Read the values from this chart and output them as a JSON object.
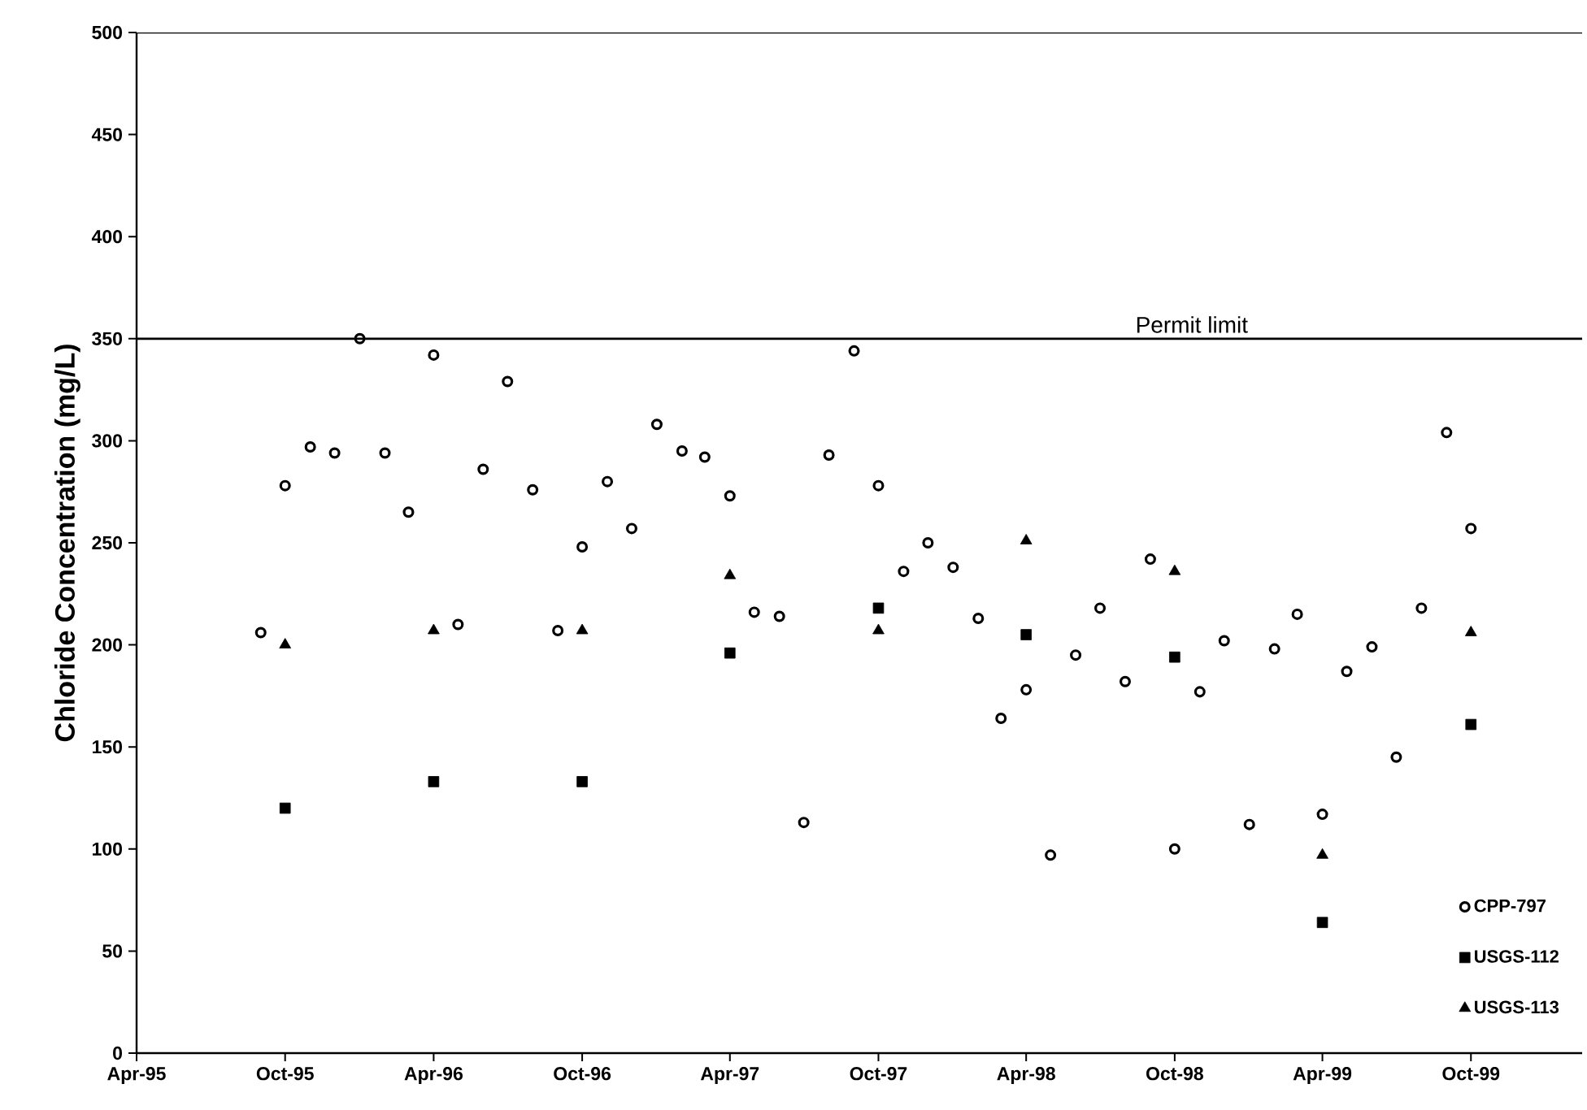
{
  "chart_data": {
    "type": "scatter",
    "ylabel": "Chloride Concentration (mg/L)",
    "xlim": [
      "1995-04",
      "2000-02-15"
    ],
    "ylim": [
      0,
      500
    ],
    "xticks": [
      {
        "value": "1995-04",
        "label": "Apr-95"
      },
      {
        "value": "1995-10",
        "label": "Oct-95"
      },
      {
        "value": "1996-04",
        "label": "Apr-96"
      },
      {
        "value": "1996-10",
        "label": "Oct-96"
      },
      {
        "value": "1997-04",
        "label": "Apr-97"
      },
      {
        "value": "1997-10",
        "label": "Oct-97"
      },
      {
        "value": "1998-04",
        "label": "Apr-98"
      },
      {
        "value": "1998-10",
        "label": "Oct-98"
      },
      {
        "value": "1999-04",
        "label": "Apr-99"
      },
      {
        "value": "1999-10",
        "label": "Oct-99"
      }
    ],
    "yticks": [
      0,
      50,
      100,
      150,
      200,
      250,
      300,
      350,
      400,
      450,
      500
    ],
    "grid": false,
    "legend": "bottom right",
    "ref_lines": [
      {
        "axis": "y",
        "value": 350,
        "label": "Permit limit",
        "color": "#000000"
      }
    ],
    "series": [
      {
        "name": "CPP-797",
        "color": "#000000",
        "marker": "circle",
        "x": [
          "1995-09",
          "1995-10",
          "1995-11",
          "1995-12",
          "1996-01",
          "1996-02",
          "1996-03",
          "1996-04",
          "1996-05",
          "1996-06",
          "1996-07",
          "1996-08",
          "1996-09",
          "1996-10",
          "1996-11",
          "1996-12",
          "1997-01",
          "1997-02",
          "1997-03",
          "1997-04",
          "1997-05",
          "1997-06",
          "1997-07",
          "1997-08",
          "1997-09",
          "1997-10",
          "1997-11",
          "1997-12",
          "1998-01",
          "1998-02",
          "1998-03",
          "1998-04",
          "1998-05",
          "1998-06",
          "1998-07",
          "1998-08",
          "1998-09",
          "1998-10",
          "1998-11",
          "1998-12",
          "1999-01",
          "1999-02",
          "1999-03",
          "1999-04",
          "1999-05",
          "1999-06",
          "1999-07",
          "1999-08",
          "1999-09",
          "1999-10"
        ],
        "values": [
          206,
          278,
          297,
          294,
          350,
          294,
          265,
          342,
          210,
          286,
          329,
          276,
          207,
          248,
          280,
          257,
          308,
          295,
          292,
          273,
          216,
          214,
          113,
          293,
          344,
          278,
          236,
          250,
          238,
          213,
          164,
          178,
          97,
          195,
          218,
          182,
          242,
          100,
          177,
          202,
          112,
          198,
          215,
          117,
          187,
          199,
          145,
          218,
          304,
          257
        ]
      },
      {
        "name": "USGS-112",
        "color": "#000000",
        "marker": "square",
        "x": [
          "1995-10",
          "1996-04",
          "1996-10",
          "1997-04",
          "1997-10",
          "1998-04",
          "1998-10",
          "1999-04",
          "1999-10"
        ],
        "values": [
          120,
          133,
          133,
          196,
          218,
          205,
          194,
          64,
          161
        ]
      },
      {
        "name": "USGS-113",
        "color": "#000000",
        "marker": "triangle",
        "x": [
          "1995-10",
          "1996-04",
          "1996-10",
          "1997-04",
          "1997-10",
          "1998-04",
          "1998-10",
          "1999-04",
          "1999-10"
        ],
        "values": [
          200,
          207,
          207,
          234,
          207,
          251,
          236,
          97,
          206
        ]
      }
    ]
  }
}
